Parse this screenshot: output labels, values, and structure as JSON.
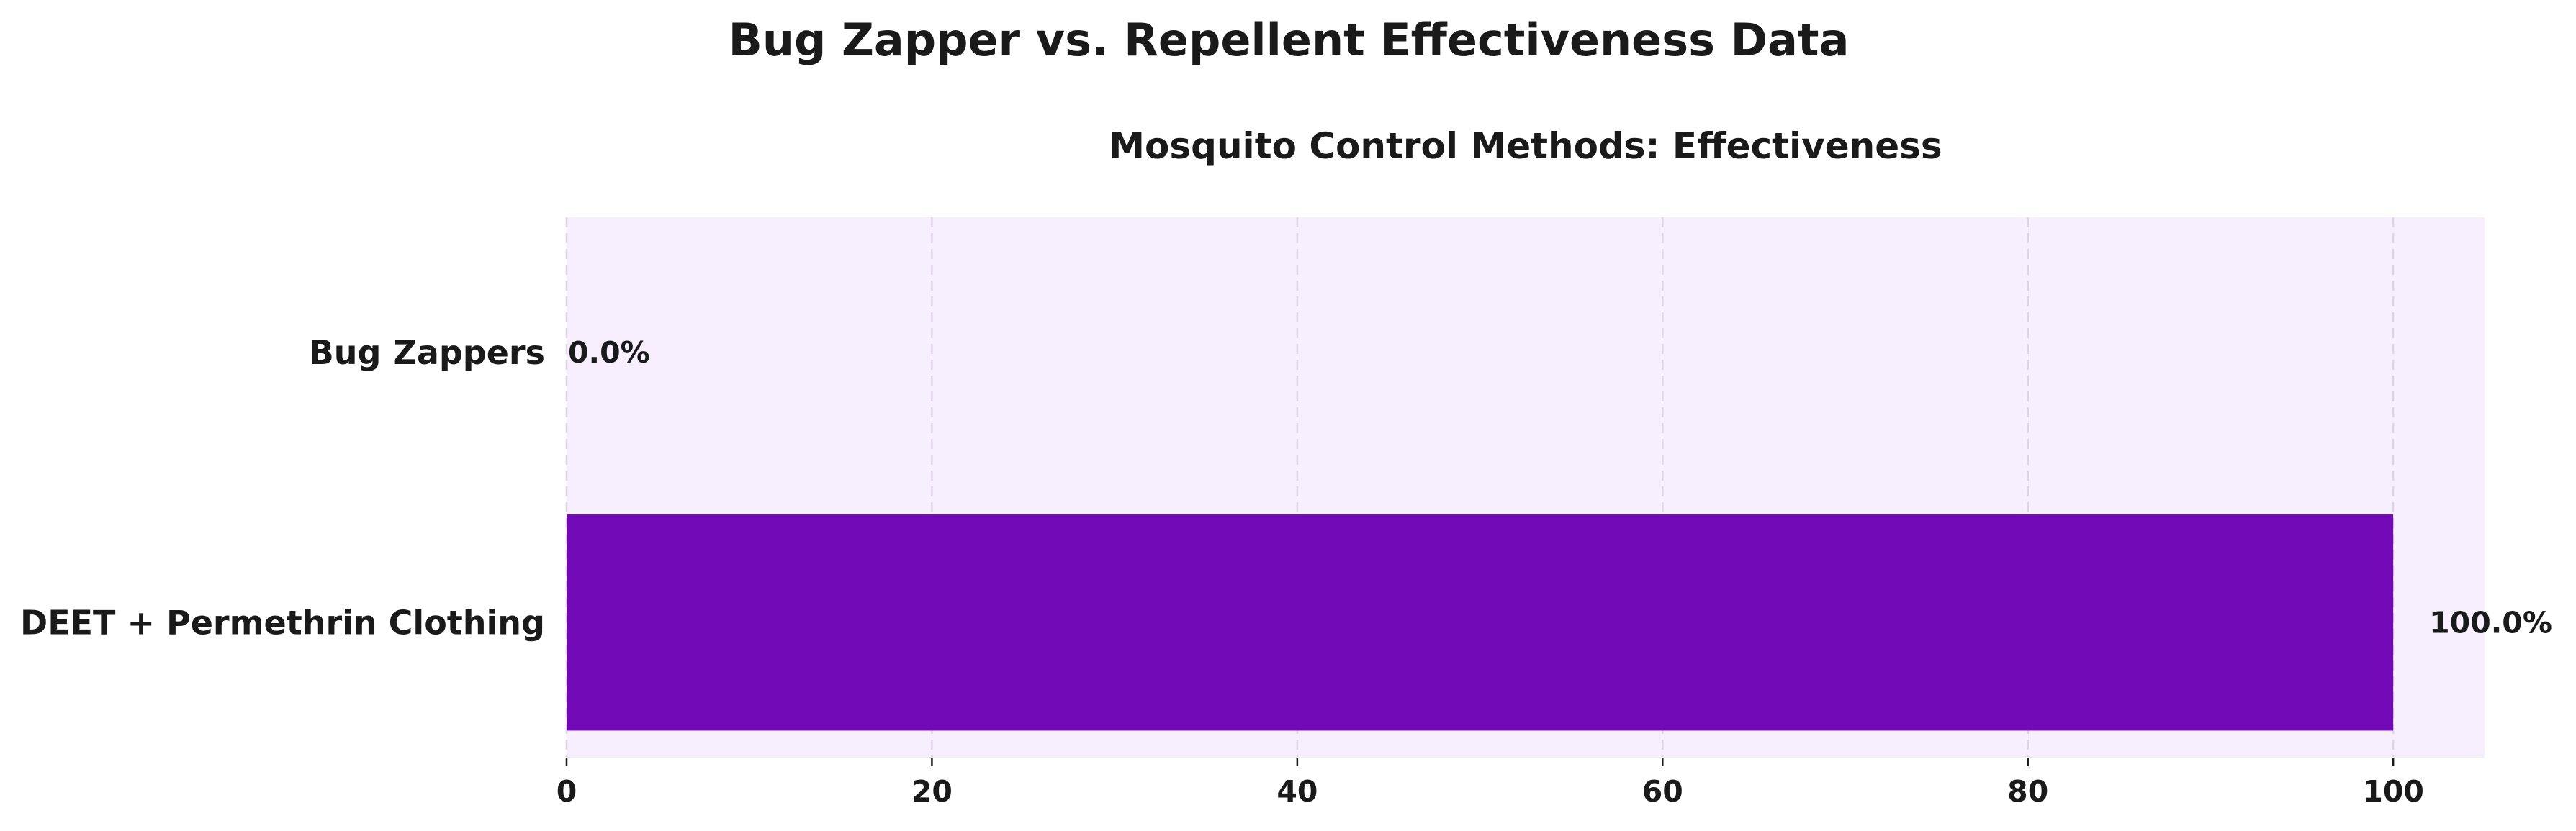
{
  "chart_data": {
    "type": "bar",
    "orientation": "horizontal",
    "suptitle": "Bug Zapper vs. Repellent Effectiveness Data",
    "title": "Mosquito Control Methods: Effectiveness",
    "xlabel": "",
    "ylabel": "",
    "categories": [
      "Bug Zappers",
      "DEET + Permethrin Clothing"
    ],
    "values": [
      0.0,
      100.0
    ],
    "value_labels": [
      "0.0%",
      "100.0%"
    ],
    "xlim": [
      0,
      105
    ],
    "xticks": [
      0,
      20,
      40,
      60,
      80,
      100
    ],
    "xtick_labels": [
      "0",
      "20",
      "40",
      "60",
      "80",
      "100"
    ],
    "grid": "vertical dashed",
    "legend": "none",
    "colors": {
      "bar": "#7209b7",
      "plot_background": "#f7effd",
      "grid": "#e0d2e8",
      "text": "#1a1a1a"
    }
  }
}
